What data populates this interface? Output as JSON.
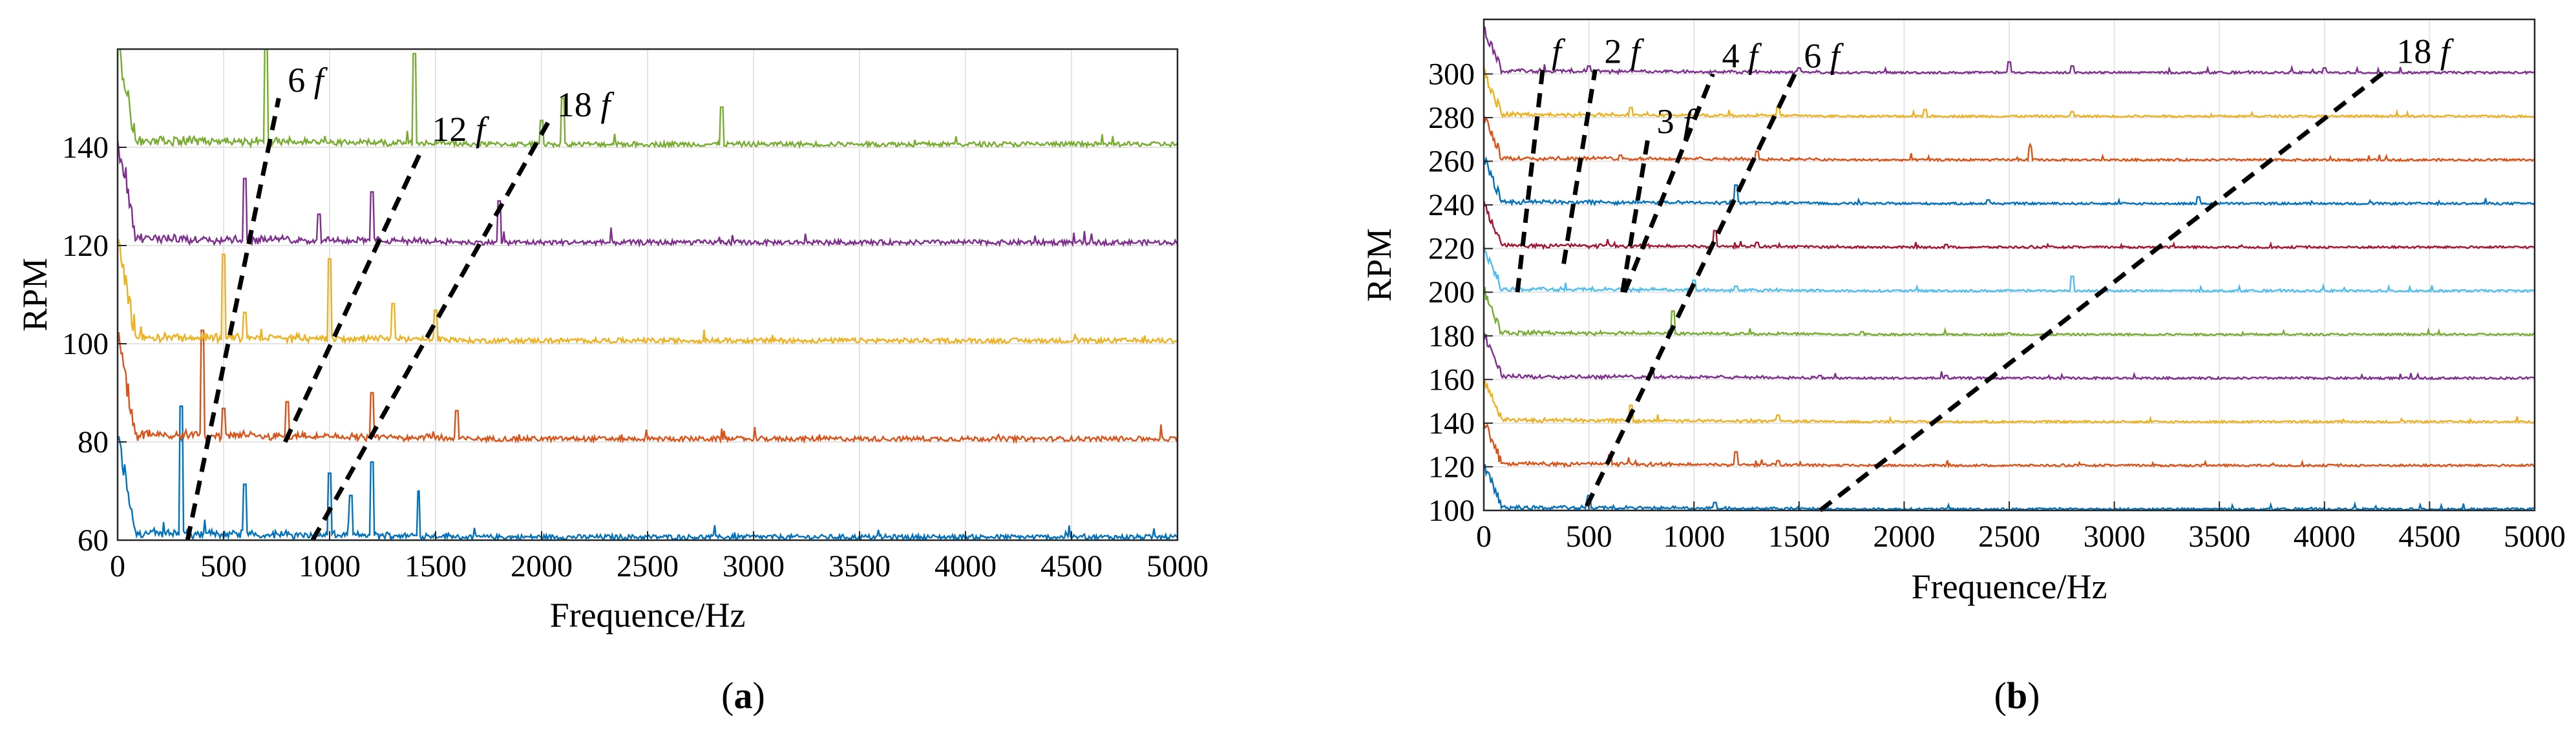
{
  "chart_data": [
    {
      "id": "a",
      "type": "line",
      "caption_letter": "a",
      "xlabel": "Frequence/Hz",
      "ylabel": "RPM",
      "xlim": [
        0,
        5000
      ],
      "ylim": [
        60,
        160
      ],
      "xticks": [
        0,
        500,
        1000,
        1500,
        2000,
        2500,
        3000,
        3500,
        4000,
        4500,
        5000
      ],
      "yticks": [
        60,
        80,
        100,
        120,
        140
      ],
      "grid": true,
      "series": [
        {
          "rpm": 60,
          "color": "#0072BD",
          "spikes": [
            [
              300,
              60
            ],
            [
              1000,
              30
            ],
            [
              1200,
              35
            ],
            [
              1420,
              22
            ],
            [
              600,
              25
            ],
            [
              1100,
              20
            ]
          ]
        },
        {
          "rpm": 80,
          "color": "#D95319",
          "spikes": [
            [
              400,
              50
            ],
            [
              800,
              18
            ],
            [
              1200,
              22
            ],
            [
              1600,
              14
            ],
            [
              500,
              15
            ]
          ]
        },
        {
          "rpm": 100,
          "color": "#EDB120",
          "spikes": [
            [
              500,
              40
            ],
            [
              1000,
              38
            ],
            [
              1300,
              18
            ],
            [
              1500,
              15
            ],
            [
              600,
              14
            ]
          ]
        },
        {
          "rpm": 120,
          "color": "#7E2F8E",
          "spikes": [
            [
              600,
              30
            ],
            [
              1200,
              24
            ],
            [
              1800,
              20
            ],
            [
              950,
              14
            ]
          ]
        },
        {
          "rpm": 140,
          "color": "#77AC30",
          "spikes": [
            [
              700,
              48
            ],
            [
              1400,
              42
            ],
            [
              2100,
              22
            ],
            [
              2850,
              18
            ],
            [
              2000,
              12
            ]
          ]
        }
      ],
      "annotations": [
        {
          "label": "6",
          "suffix": "f",
          "from": [
            330,
            60
          ],
          "to": [
            760,
            150
          ]
        },
        {
          "label": "12",
          "suffix": "f",
          "from": [
            790,
            80
          ],
          "to": [
            1440,
            140
          ]
        },
        {
          "label": "18",
          "suffix": "f",
          "from": [
            920,
            60
          ],
          "to": [
            2030,
            145
          ]
        }
      ]
    },
    {
      "id": "b",
      "type": "line",
      "caption_letter": "b",
      "xlabel": "Frequence/Hz",
      "ylabel": "RPM",
      "xlim": [
        0,
        5000
      ],
      "ylim": [
        100,
        325
      ],
      "xticks": [
        0,
        500,
        1000,
        1500,
        2000,
        2500,
        3000,
        3500,
        4000,
        4500,
        5000
      ],
      "yticks": [
        100,
        120,
        140,
        160,
        180,
        200,
        220,
        240,
        260,
        280,
        300
      ],
      "grid": true,
      "series": [
        {
          "rpm": 100,
          "color": "#0072BD",
          "spikes": [
            [
              500,
              15
            ],
            [
              1100,
              8
            ]
          ]
        },
        {
          "rpm": 120,
          "color": "#D95319",
          "spikes": [
            [
              600,
              12
            ],
            [
              1200,
              15
            ],
            [
              1400,
              6
            ]
          ]
        },
        {
          "rpm": 140,
          "color": "#EDB120",
          "spikes": [
            [
              700,
              18
            ],
            [
              1400,
              8
            ]
          ]
        },
        {
          "rpm": 160,
          "color": "#7E2F8E",
          "spikes": [
            [
              800,
              12
            ],
            [
              1600,
              4
            ],
            [
              2200,
              4
            ]
          ]
        },
        {
          "rpm": 180,
          "color": "#77AC30",
          "spikes": [
            [
              900,
              25
            ],
            [
              1800,
              4
            ],
            [
              2500,
              3
            ]
          ]
        },
        {
          "rpm": 200,
          "color": "#4DBEEE",
          "spikes": [
            [
              1000,
              12
            ],
            [
              1200,
              6
            ],
            [
              2800,
              16
            ]
          ]
        },
        {
          "rpm": 220,
          "color": "#A2142F",
          "spikes": [
            [
              1100,
              18
            ],
            [
              1300,
              6
            ],
            [
              2200,
              4
            ]
          ]
        },
        {
          "rpm": 240,
          "color": "#0072BD",
          "spikes": [
            [
              1200,
              20
            ],
            [
              2400,
              5
            ],
            [
              3400,
              8
            ]
          ]
        },
        {
          "rpm": 260,
          "color": "#D95319",
          "spikes": [
            [
              650,
              6
            ],
            [
              1300,
              10
            ],
            [
              2600,
              14
            ]
          ]
        },
        {
          "rpm": 280,
          "color": "#EDB120",
          "spikes": [
            [
              700,
              10
            ],
            [
              1400,
              10
            ],
            [
              2100,
              8
            ],
            [
              2800,
              6
            ]
          ]
        },
        {
          "rpm": 300,
          "color": "#7E2F8E",
          "spikes": [
            [
              500,
              8
            ],
            [
              1500,
              6
            ],
            [
              2500,
              12
            ],
            [
              2800,
              8
            ],
            [
              4000,
              6
            ]
          ]
        }
      ],
      "annotations": [
        {
          "label": "",
          "suffix": "f",
          "from": [
            160,
            200
          ],
          "to": [
            280,
            302
          ]
        },
        {
          "label": "2",
          "suffix": "f",
          "from": [
            380,
            213
          ],
          "to": [
            530,
            302
          ]
        },
        {
          "label": "3",
          "suffix": "f",
          "from": [
            660,
            200
          ],
          "to": [
            780,
            270
          ]
        },
        {
          "label": "4",
          "suffix": "f",
          "from": [
            670,
            200
          ],
          "to": [
            1090,
            300
          ]
        },
        {
          "label": "6",
          "suffix": "f",
          "from": [
            490,
            102
          ],
          "to": [
            1480,
            300
          ]
        },
        {
          "label": "18",
          "suffix": "f",
          "from": [
            1600,
            100
          ],
          "to": [
            4300,
            302
          ]
        }
      ]
    }
  ]
}
